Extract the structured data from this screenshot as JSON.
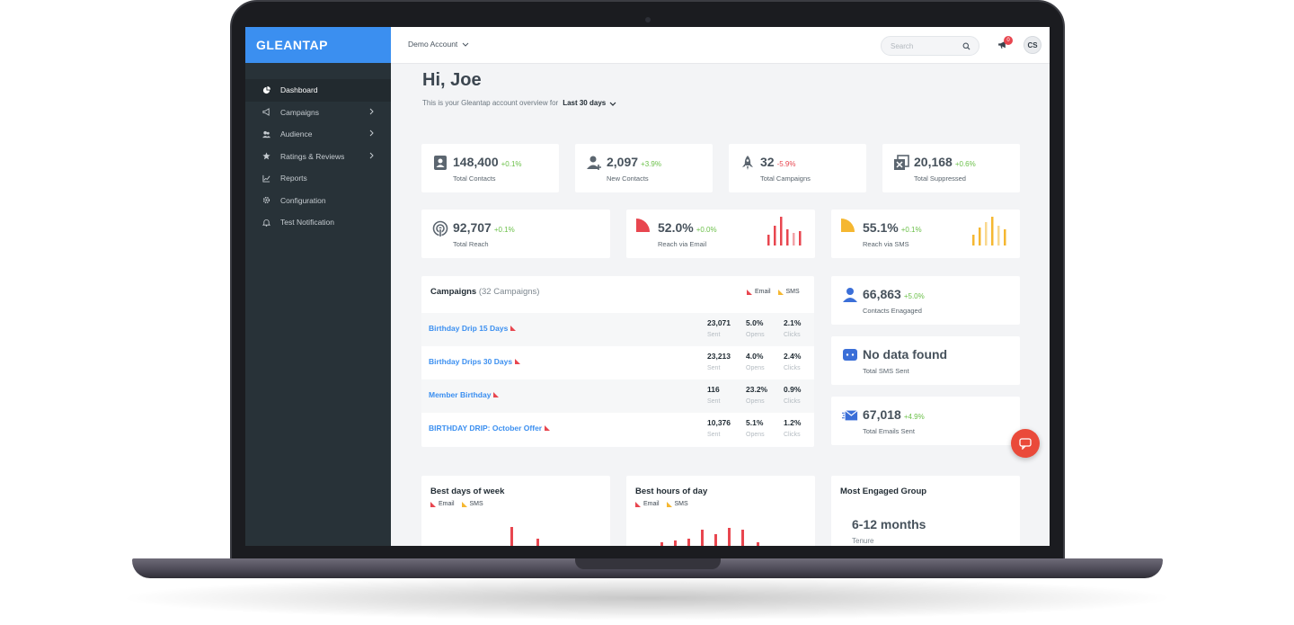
{
  "brand": "GLEANTAP",
  "sidebar": {
    "items": [
      {
        "label": "Dashboard",
        "icon": "pie-chart-icon",
        "active": true
      },
      {
        "label": "Campaigns",
        "icon": "megaphone-icon",
        "submenu": true
      },
      {
        "label": "Audience",
        "icon": "users-icon",
        "submenu": true
      },
      {
        "label": "Ratings & Reviews",
        "icon": "star-icon",
        "submenu": true
      },
      {
        "label": "Reports",
        "icon": "line-chart-icon"
      },
      {
        "label": "Configuration",
        "icon": "gear-icon"
      },
      {
        "label": "Test Notification",
        "icon": "bell-icon"
      }
    ]
  },
  "topbar": {
    "account": "Demo Account",
    "search_placeholder": "Search",
    "notification_count": "0",
    "avatar_initials": "CS"
  },
  "header": {
    "greeting": "Hi, Joe",
    "subtitle": "This is your Gleantap account overview for",
    "range": "Last 30 days"
  },
  "stats": {
    "total_contacts": {
      "value": "148,400",
      "change": "+0.1%",
      "label": "Total Contacts"
    },
    "new_contacts": {
      "value": "2,097",
      "change": "+3.9%",
      "label": "New Contacts"
    },
    "total_campaigns": {
      "value": "32",
      "change": "-5.9%",
      "label": "Total Campaigns"
    },
    "total_suppressed": {
      "value": "20,168",
      "change": "+0.6%",
      "label": "Total Suppressed"
    },
    "total_reach": {
      "value": "92,707",
      "change": "+0.1%",
      "label": "Total Reach"
    },
    "reach_email": {
      "value": "52.0%",
      "change": "+0.0%",
      "label": "Reach via Email",
      "fraction": 0.52
    },
    "reach_sms": {
      "value": "55.1%",
      "change": "+0.1%",
      "label": "Reach via SMS",
      "fraction": 0.551
    },
    "contacts_engaged": {
      "value": "66,863",
      "change": "+5.0%",
      "label": "Contacts Enagaged"
    },
    "total_sms": {
      "value": "No data found",
      "label": "Total SMS Sent"
    },
    "total_emails": {
      "value": "67,018",
      "change": "+4.9%",
      "label": "Total Emails Sent"
    }
  },
  "campaigns": {
    "title": "Campaigns",
    "count": "(32 Campaigns)",
    "legend": [
      "Email",
      "SMS"
    ],
    "metric_labels": [
      "Sent",
      "Opens",
      "Clicks"
    ],
    "rows": [
      {
        "name": "Birthday Drip 15 Days",
        "sent": "23,071",
        "opens": "5.0%",
        "clicks": "2.1%"
      },
      {
        "name": "Birthday Drips 30 Days",
        "sent": "23,213",
        "opens": "4.0%",
        "clicks": "2.4%"
      },
      {
        "name": "Member Birthday",
        "sent": "116",
        "opens": "23.2%",
        "clicks": "0.9%"
      },
      {
        "name": "BIRTHDAY DRIP: October Offer",
        "sent": "10,376",
        "opens": "5.1%",
        "clicks": "1.2%"
      }
    ]
  },
  "bottom": {
    "best_days": {
      "title": "Best days of week",
      "legend": [
        "Email",
        "SMS"
      ]
    },
    "best_hours": {
      "title": "Best hours of day",
      "legend": [
        "Email",
        "SMS"
      ]
    },
    "engaged_group": {
      "title": "Most Engaged Group",
      "value": "6-12 months",
      "label": "Tenure"
    }
  },
  "colors": {
    "brand_blue": "#3b8ff0",
    "sidebar": "#283238",
    "email": "#e8464f",
    "sms": "#f5b731",
    "positive": "#6cc04a",
    "negative": "#e8464f"
  }
}
